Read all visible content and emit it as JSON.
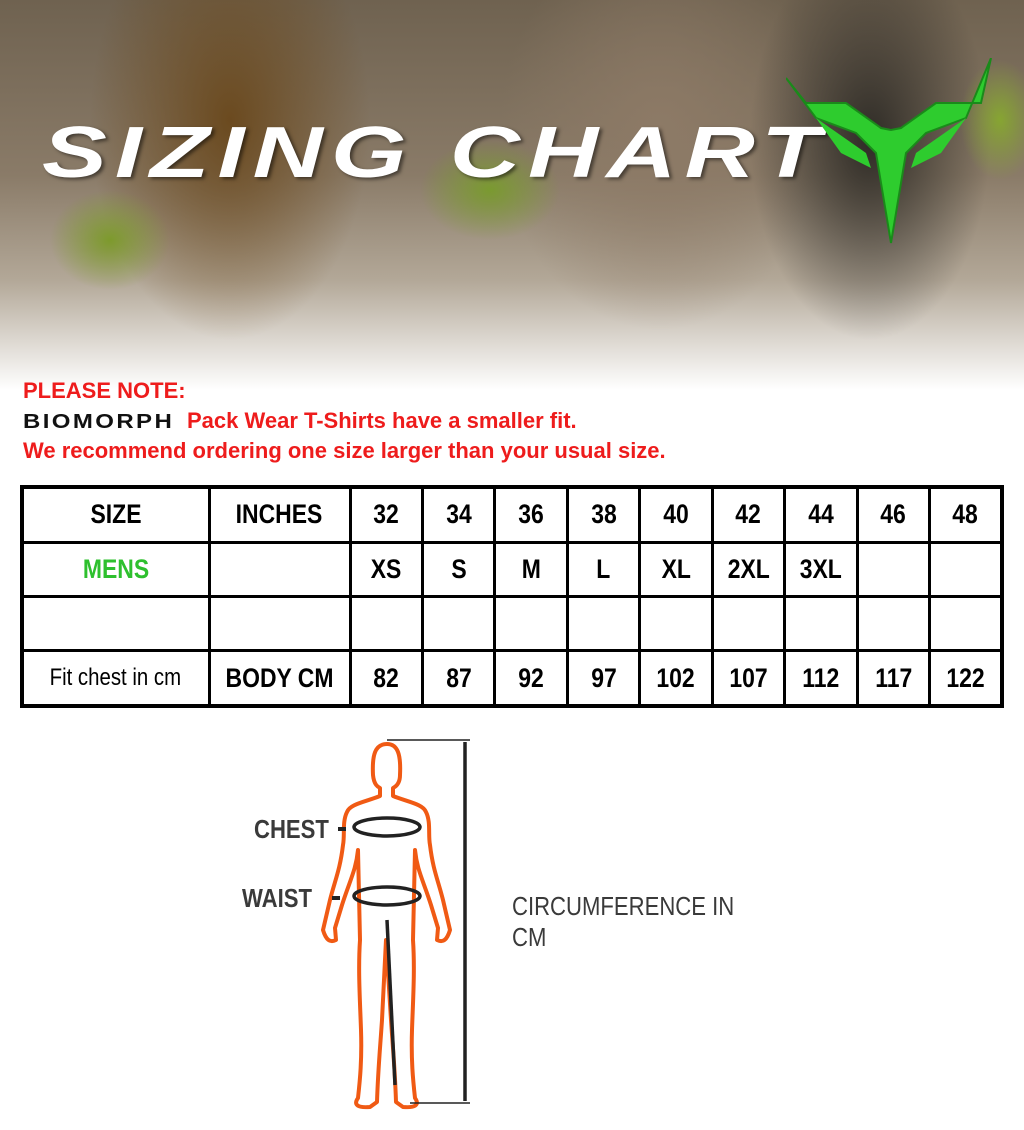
{
  "header": {
    "title": "SIZING CHART",
    "logo_icon": "biomorph-horned-logo",
    "logo_color": "#2ecc2e"
  },
  "note": {
    "heading": "PLEASE NOTE:",
    "brand": "BIOMORPH",
    "line1": "Pack Wear T-Shirts have a smaller fit.",
    "line2": "We recommend ordering one size larger than your usual size.",
    "color": "#ee1c1c"
  },
  "table": {
    "rows": [
      {
        "label": "SIZE",
        "unit": "INCHES",
        "cells": [
          "32",
          "34",
          "36",
          "38",
          "40",
          "42",
          "44",
          "46",
          "48"
        ]
      },
      {
        "label": "MENS",
        "unit": "",
        "cells": [
          "XS",
          "S",
          "M",
          "L",
          "XL",
          "2XL",
          "3XL",
          "",
          ""
        ]
      },
      {
        "label": "",
        "unit": "",
        "cells": [
          "",
          "",
          "",
          "",
          "",
          "",
          "",
          "",
          ""
        ]
      },
      {
        "label": "Fit chest in cm",
        "unit": "BODY CM",
        "cells": [
          "82",
          "87",
          "92",
          "97",
          "102",
          "107",
          "112",
          "117",
          "122"
        ]
      }
    ],
    "mens_color": "#2ec02e"
  },
  "figure": {
    "chest": "CHEST",
    "waist": "WAIST",
    "measure": "CIRCUMFERENCE IN CM",
    "outline_color": "#f05a14"
  }
}
